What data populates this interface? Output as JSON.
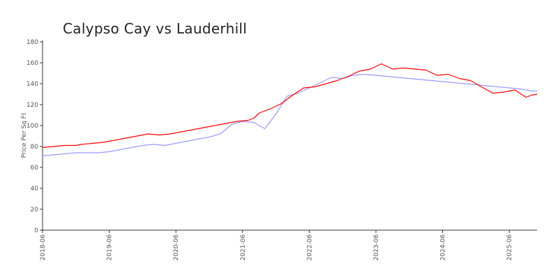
{
  "chart_data": {
    "type": "line",
    "title": "Calypso Cay vs Lauderhill",
    "xlabel": "",
    "ylabel": "Price Per Sq Ft",
    "ylim": [
      0,
      180
    ],
    "xlim": [
      "2018-06",
      "2025-11"
    ],
    "yticks": [
      0,
      20,
      40,
      60,
      80,
      100,
      120,
      140,
      160,
      180
    ],
    "xticks": [
      "2018-06",
      "2019-06",
      "2020-06",
      "2021-06",
      "2022-06",
      "2023-06",
      "2024-06",
      "2025-06"
    ],
    "grid": false,
    "legend": "none",
    "series": [
      {
        "color": "#ff0000",
        "points": [
          [
            "2018-06",
            79
          ],
          [
            "2018-08",
            80
          ],
          [
            "2018-10",
            81
          ],
          [
            "2018-12",
            81
          ],
          [
            "2019-01",
            82
          ],
          [
            "2019-03",
            83
          ],
          [
            "2019-05",
            84
          ],
          [
            "2019-07",
            86
          ],
          [
            "2019-09",
            88
          ],
          [
            "2019-11",
            90
          ],
          [
            "2020-01",
            92
          ],
          [
            "2020-03",
            91
          ],
          [
            "2020-05",
            92
          ],
          [
            "2020-07",
            94
          ],
          [
            "2020-09",
            96
          ],
          [
            "2020-11",
            98
          ],
          [
            "2021-01",
            100
          ],
          [
            "2021-03",
            102
          ],
          [
            "2021-05",
            104
          ],
          [
            "2021-07",
            105
          ],
          [
            "2021-08",
            107
          ],
          [
            "2021-09",
            112
          ],
          [
            "2021-11",
            116
          ],
          [
            "2022-01",
            121
          ],
          [
            "2022-03",
            129
          ],
          [
            "2022-05",
            136
          ],
          [
            "2022-07",
            137
          ],
          [
            "2022-09",
            140
          ],
          [
            "2022-11",
            143
          ],
          [
            "2023-01",
            147
          ],
          [
            "2023-03",
            152
          ],
          [
            "2023-05",
            154
          ],
          [
            "2023-07",
            159
          ],
          [
            "2023-09",
            154
          ],
          [
            "2023-11",
            155
          ],
          [
            "2024-01",
            154
          ],
          [
            "2024-03",
            153
          ],
          [
            "2024-05",
            148
          ],
          [
            "2024-07",
            149
          ],
          [
            "2024-09",
            145
          ],
          [
            "2024-11",
            143
          ],
          [
            "2025-01",
            137
          ],
          [
            "2025-03",
            131
          ],
          [
            "2025-05",
            132
          ],
          [
            "2025-07",
            134
          ],
          [
            "2025-09",
            127
          ],
          [
            "2025-10",
            129
          ],
          [
            "2025-11",
            130
          ]
        ]
      },
      {
        "color": "#9999ff",
        "points": [
          [
            "2018-06",
            71
          ],
          [
            "2018-08",
            72
          ],
          [
            "2018-10",
            73
          ],
          [
            "2018-12",
            74
          ],
          [
            "2019-02",
            74
          ],
          [
            "2019-04",
            74
          ],
          [
            "2019-06",
            75
          ],
          [
            "2019-08",
            77
          ],
          [
            "2019-10",
            79
          ],
          [
            "2019-12",
            81
          ],
          [
            "2020-02",
            82
          ],
          [
            "2020-04",
            81
          ],
          [
            "2020-06",
            83
          ],
          [
            "2020-08",
            85
          ],
          [
            "2020-10",
            87
          ],
          [
            "2020-12",
            89
          ],
          [
            "2021-02",
            92
          ],
          [
            "2021-04",
            101
          ],
          [
            "2021-06",
            104
          ],
          [
            "2021-08",
            103
          ],
          [
            "2021-10",
            97
          ],
          [
            "2021-12",
            111
          ],
          [
            "2022-02",
            128
          ],
          [
            "2022-04",
            131
          ],
          [
            "2022-06",
            136
          ],
          [
            "2022-08",
            141
          ],
          [
            "2022-10",
            146
          ],
          [
            "2022-12",
            145
          ],
          [
            "2023-02",
            148
          ],
          [
            "2023-04",
            149
          ],
          [
            "2023-06",
            148
          ],
          [
            "2023-08",
            147
          ],
          [
            "2023-10",
            146
          ],
          [
            "2023-12",
            145
          ],
          [
            "2024-02",
            144
          ],
          [
            "2024-04",
            143
          ],
          [
            "2024-06",
            142
          ],
          [
            "2024-08",
            141
          ],
          [
            "2024-10",
            140
          ],
          [
            "2024-12",
            139
          ],
          [
            "2025-02",
            138
          ],
          [
            "2025-04",
            137
          ],
          [
            "2025-06",
            136
          ],
          [
            "2025-08",
            135
          ],
          [
            "2025-10",
            133
          ],
          [
            "2025-11",
            133
          ]
        ]
      }
    ]
  }
}
